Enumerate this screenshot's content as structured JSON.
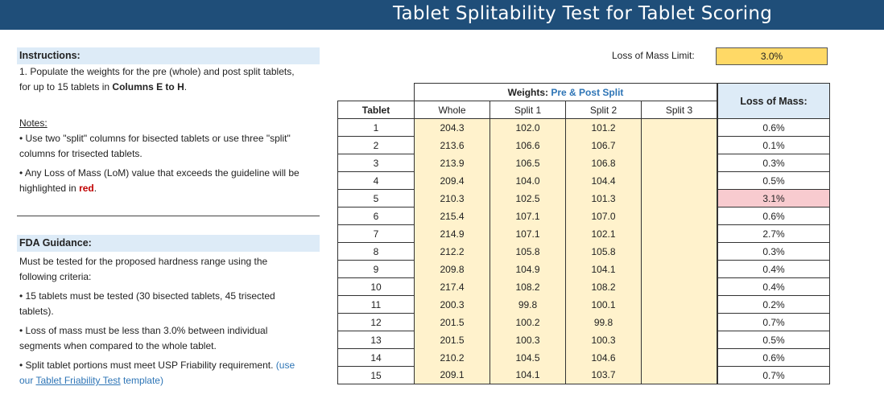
{
  "header": {
    "title": "Tablet Splitability Test for Tablet Scoring"
  },
  "instructions": {
    "heading": "Instructions:",
    "line1": "1. Populate the weights for the pre (whole) and post split tablets,",
    "line2_prefix": "for up to 15 tablets in ",
    "line2_bold": "Columns E to H",
    "line2_suffix": "."
  },
  "notes": {
    "label": "Notes:",
    "bullet1_line1": "• Use two \"split\" columns for bisected tablets or use three \"split\"",
    "bullet1_line2": "columns for trisected tablets.",
    "bullet2_line1": "• Any Loss of Mass (LoM) value that exceeds the guideline will be",
    "bullet2_line2_prefix": "highlighted in ",
    "bullet2_red": "red",
    "bullet2_suffix": "."
  },
  "fda": {
    "heading": "FDA Guidance:",
    "intro_line1": "Must be tested for the proposed hardness range using the",
    "intro_line2": "following criteria:",
    "b1_line1": "• 15 tablets must be tested (30 bisected tablets, 45 trisected",
    "b1_line2": "tablets).",
    "b2_line1": "• Loss of mass must be less than 3.0% between individual",
    "b2_line2": "segments when compared to the whole tablet.",
    "b3_line1": "• Split tablet portions must meet USP Friability requirement.",
    "b3_use": "(use",
    "b3_our": "our ",
    "b3_link": "Tablet Friability Test",
    "b3_end": " template)"
  },
  "lom_limit": {
    "label": "Loss of Mass Limit:",
    "value": "3.0%"
  },
  "table": {
    "weights_label": "Weights: ",
    "weights_blue": "Pre & Post Split",
    "tablet_header": "Tablet",
    "col_whole": "Whole",
    "col_split1": "Split 1",
    "col_split2": "Split 2",
    "col_split3": "Split 3",
    "lom_header": "Loss of Mass:",
    "rows": [
      {
        "tablet": "1",
        "whole": "204.3",
        "s1": "102.0",
        "s2": "101.2",
        "s3": "",
        "lom": "0.6%"
      },
      {
        "tablet": "2",
        "whole": "213.6",
        "s1": "106.6",
        "s2": "106.7",
        "s3": "",
        "lom": "0.1%"
      },
      {
        "tablet": "3",
        "whole": "213.9",
        "s1": "106.5",
        "s2": "106.8",
        "s3": "",
        "lom": "0.3%"
      },
      {
        "tablet": "4",
        "whole": "209.4",
        "s1": "104.0",
        "s2": "104.4",
        "s3": "",
        "lom": "0.5%"
      },
      {
        "tablet": "5",
        "whole": "210.3",
        "s1": "102.5",
        "s2": "101.3",
        "s3": "",
        "lom": "3.1%"
      },
      {
        "tablet": "6",
        "whole": "215.4",
        "s1": "107.1",
        "s2": "107.0",
        "s3": "",
        "lom": "0.6%"
      },
      {
        "tablet": "7",
        "whole": "214.9",
        "s1": "107.1",
        "s2": "102.1",
        "s3": "",
        "lom": "2.7%"
      },
      {
        "tablet": "8",
        "whole": "212.2",
        "s1": "105.8",
        "s2": "105.8",
        "s3": "",
        "lom": "0.3%"
      },
      {
        "tablet": "9",
        "whole": "209.8",
        "s1": "104.9",
        "s2": "104.1",
        "s3": "",
        "lom": "0.4%"
      },
      {
        "tablet": "10",
        "whole": "217.4",
        "s1": "108.2",
        "s2": "108.2",
        "s3": "",
        "lom": "0.4%"
      },
      {
        "tablet": "11",
        "whole": "200.3",
        "s1": "99.8",
        "s2": "100.1",
        "s3": "",
        "lom": "0.2%"
      },
      {
        "tablet": "12",
        "whole": "201.5",
        "s1": "100.2",
        "s2": "99.8",
        "s3": "",
        "lom": "0.7%"
      },
      {
        "tablet": "13",
        "whole": "201.5",
        "s1": "100.3",
        "s2": "100.3",
        "s3": "",
        "lom": "0.5%"
      },
      {
        "tablet": "14",
        "whole": "210.2",
        "s1": "104.5",
        "s2": "104.6",
        "s3": "",
        "lom": "0.6%"
      },
      {
        "tablet": "15",
        "whole": "209.1",
        "s1": "104.1",
        "s2": "103.7",
        "s3": "",
        "lom": "0.7%"
      }
    ],
    "highlight_color": "#f8cbcf",
    "input_fill_color": "#fff2cc"
  }
}
